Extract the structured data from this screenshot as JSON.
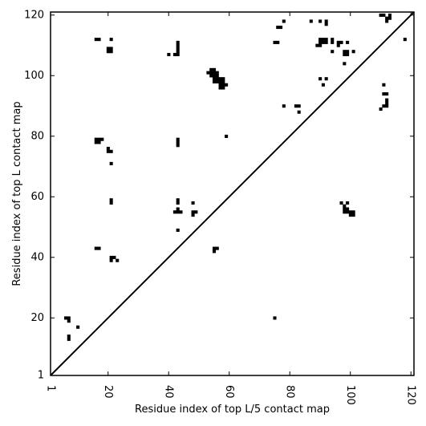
{
  "chart_data": {
    "type": "heatmap",
    "title": "",
    "xlabel": "Residue index of top L/5 contact map",
    "ylabel": "Residue index of top L contact map",
    "xlim": [
      1,
      121
    ],
    "ylim": [
      1,
      121
    ],
    "xticks": [
      1,
      20,
      40,
      60,
      80,
      100,
      120
    ],
    "yticks": [
      1,
      20,
      40,
      60,
      80,
      100,
      120
    ],
    "xtick_labels": [
      "1",
      "20",
      "40",
      "60",
      "80",
      "100",
      "120"
    ],
    "ytick_labels": [
      "1",
      "20",
      "40",
      "60",
      "80",
      "100",
      "120"
    ],
    "grid": false,
    "diagonal": true,
    "cell_color": "#000000",
    "background": "#ffffff",
    "cells": [
      [
        6,
        20
      ],
      [
        7,
        20
      ],
      [
        7,
        19
      ],
      [
        7,
        14
      ],
      [
        7,
        13
      ],
      [
        10,
        17
      ],
      [
        16,
        112
      ],
      [
        17,
        112
      ],
      [
        21,
        112
      ],
      [
        20,
        109
      ],
      [
        21,
        109
      ],
      [
        20,
        108
      ],
      [
        21,
        108
      ],
      [
        16,
        79
      ],
      [
        17,
        79
      ],
      [
        16,
        78
      ],
      [
        17,
        78
      ],
      [
        18,
        79
      ],
      [
        20,
        76
      ],
      [
        20,
        75
      ],
      [
        21,
        75
      ],
      [
        21,
        71
      ],
      [
        21,
        59
      ],
      [
        21,
        58
      ],
      [
        16,
        43
      ],
      [
        17,
        43
      ],
      [
        21,
        40
      ],
      [
        22,
        40
      ],
      [
        21,
        39
      ],
      [
        23,
        39
      ],
      [
        40,
        107
      ],
      [
        42,
        107
      ],
      [
        43,
        107
      ],
      [
        43,
        108
      ],
      [
        43,
        109
      ],
      [
        43,
        110
      ],
      [
        43,
        111
      ],
      [
        43,
        79
      ],
      [
        43,
        78
      ],
      [
        43,
        77
      ],
      [
        43,
        59
      ],
      [
        43,
        58
      ],
      [
        42,
        55
      ],
      [
        43,
        55
      ],
      [
        44,
        55
      ],
      [
        43,
        56
      ],
      [
        43,
        49
      ],
      [
        48,
        58
      ],
      [
        48,
        55
      ],
      [
        49,
        55
      ],
      [
        48,
        54
      ],
      [
        53,
        101
      ],
      [
        54,
        102
      ],
      [
        55,
        102
      ],
      [
        54,
        101
      ],
      [
        55,
        101
      ],
      [
        56,
        101
      ],
      [
        54,
        100
      ],
      [
        55,
        100
      ],
      [
        56,
        100
      ],
      [
        55,
        99
      ],
      [
        56,
        99
      ],
      [
        57,
        99
      ],
      [
        58,
        99
      ],
      [
        55,
        98
      ],
      [
        56,
        98
      ],
      [
        57,
        98
      ],
      [
        58,
        98
      ],
      [
        57,
        97
      ],
      [
        58,
        97
      ],
      [
        59,
        97
      ],
      [
        57,
        96
      ],
      [
        58,
        96
      ],
      [
        59,
        80
      ],
      [
        55,
        43
      ],
      [
        56,
        43
      ],
      [
        55,
        42
      ],
      [
        75,
        111
      ],
      [
        76,
        111
      ],
      [
        76,
        116
      ],
      [
        77,
        116
      ],
      [
        78,
        118
      ],
      [
        78,
        90
      ],
      [
        82,
        90
      ],
      [
        83,
        90
      ],
      [
        83,
        88
      ],
      [
        75,
        20
      ],
      [
        87,
        118
      ],
      [
        90,
        118
      ],
      [
        92,
        118
      ],
      [
        92,
        117
      ],
      [
        90,
        112
      ],
      [
        91,
        112
      ],
      [
        92,
        112
      ],
      [
        90,
        111
      ],
      [
        91,
        111
      ],
      [
        92,
        111
      ],
      [
        89,
        110
      ],
      [
        90,
        110
      ],
      [
        94,
        112
      ],
      [
        94,
        111
      ],
      [
        96,
        111
      ],
      [
        97,
        111
      ],
      [
        99,
        111
      ],
      [
        96,
        110
      ],
      [
        94,
        108
      ],
      [
        98,
        108
      ],
      [
        99,
        108
      ],
      [
        101,
        108
      ],
      [
        98,
        107
      ],
      [
        99,
        107
      ],
      [
        98,
        104
      ],
      [
        90,
        99
      ],
      [
        92,
        99
      ],
      [
        91,
        97
      ],
      [
        97,
        58
      ],
      [
        99,
        58
      ],
      [
        98,
        57
      ],
      [
        98,
        56
      ],
      [
        99,
        56
      ],
      [
        98,
        55
      ],
      [
        99,
        55
      ],
      [
        100,
        55
      ],
      [
        101,
        55
      ],
      [
        100,
        54
      ],
      [
        101,
        54
      ],
      [
        110,
        120
      ],
      [
        111,
        120
      ],
      [
        113,
        120
      ],
      [
        112,
        119
      ],
      [
        113,
        119
      ],
      [
        112,
        118
      ],
      [
        118,
        112
      ],
      [
        111,
        97
      ],
      [
        111,
        94
      ],
      [
        112,
        94
      ],
      [
        112,
        92
      ],
      [
        112,
        91
      ],
      [
        111,
        90
      ],
      [
        112,
        90
      ],
      [
        110,
        89
      ]
    ]
  }
}
